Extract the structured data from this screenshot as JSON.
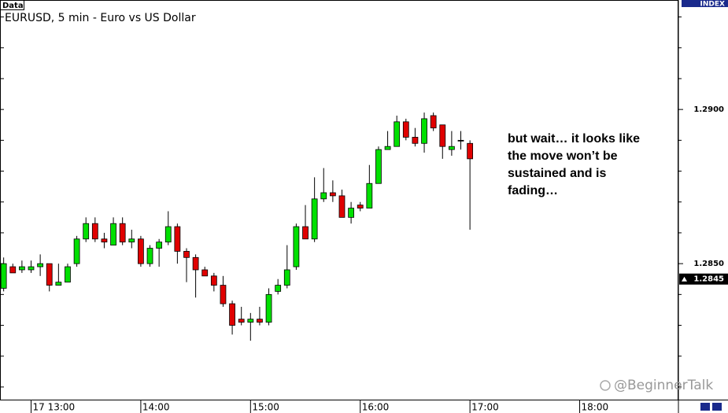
{
  "chart_data": {
    "type": "candlestick",
    "badge": "Data",
    "title": "EURUSD, 5 min - Euro vs US Dollar",
    "axis_title": "INDEX",
    "x": [
      765,
      770,
      775,
      780,
      785,
      790,
      795,
      800,
      805,
      810,
      815,
      820,
      825,
      830,
      835,
      840,
      845,
      850,
      855,
      860,
      865,
      870,
      875,
      880,
      885,
      890,
      895,
      900,
      905,
      910,
      915,
      920,
      925,
      930,
      935,
      940,
      945,
      950,
      955,
      960,
      965,
      970,
      975,
      980,
      985,
      990,
      995,
      1000,
      1005,
      1010,
      1015,
      1020
    ],
    "open": [
      1.2842,
      1.2849,
      1.2848,
      1.2848,
      1.2849,
      1.285,
      1.2843,
      1.2844,
      1.285,
      1.2858,
      1.2863,
      1.2858,
      1.2856,
      1.2863,
      1.2857,
      1.2858,
      1.285,
      1.2855,
      1.2857,
      1.2862,
      1.2854,
      1.2852,
      1.2848,
      1.2846,
      1.2843,
      1.2837,
      1.2832,
      1.2831,
      1.2832,
      1.2831,
      1.2841,
      1.2843,
      1.2849,
      1.2862,
      1.2858,
      1.2871,
      1.2873,
      1.2872,
      1.2865,
      1.2869,
      1.2868,
      1.2876,
      1.2887,
      1.2888,
      1.2896,
      1.2891,
      1.2889,
      1.2898,
      1.2895,
      1.2887,
      1.289,
      1.2889
    ],
    "high": [
      1.2852,
      1.285,
      1.2851,
      1.2851,
      1.2853,
      1.285,
      1.285,
      1.285,
      1.2859,
      1.2865,
      1.2865,
      1.286,
      1.2865,
      1.2865,
      1.2861,
      1.2859,
      1.2856,
      1.2858,
      1.2867,
      1.2863,
      1.2855,
      1.2853,
      1.2849,
      1.2847,
      1.2846,
      1.2838,
      1.2836,
      1.2834,
      1.2836,
      1.2842,
      1.2845,
      1.2856,
      1.2863,
      1.2869,
      1.2878,
      1.2881,
      1.2877,
      1.2874,
      1.287,
      1.287,
      1.2882,
      1.2888,
      1.2893,
      1.2898,
      1.2897,
      1.2894,
      1.2899,
      1.2899,
      1.2895,
      1.2893,
      1.2893,
      1.289
    ],
    "low": [
      1.2841,
      1.2847,
      1.2847,
      1.2847,
      1.2846,
      1.2841,
      1.2843,
      1.2844,
      1.2849,
      1.2857,
      1.2857,
      1.2855,
      1.2856,
      1.2856,
      1.2855,
      1.2849,
      1.2849,
      1.2849,
      1.2856,
      1.285,
      1.2844,
      1.2839,
      1.2846,
      1.2841,
      1.2836,
      1.2827,
      1.283,
      1.2825,
      1.283,
      1.283,
      1.284,
      1.2842,
      1.2848,
      1.2858,
      1.2857,
      1.287,
      1.287,
      1.2865,
      1.2863,
      1.2867,
      1.2868,
      1.2876,
      1.2887,
      1.2888,
      1.289,
      1.2888,
      1.2886,
      1.2893,
      1.2884,
      1.2885,
      1.2887,
      1.2861
    ],
    "close": [
      1.285,
      1.2847,
      1.2849,
      1.2849,
      1.285,
      1.2843,
      1.2844,
      1.2849,
      1.2858,
      1.2863,
      1.2858,
      1.2857,
      1.2863,
      1.2857,
      1.2858,
      1.285,
      1.2855,
      1.2857,
      1.2862,
      1.2854,
      1.2852,
      1.2848,
      1.2846,
      1.2843,
      1.2837,
      1.283,
      1.2831,
      1.2832,
      1.2831,
      1.284,
      1.2843,
      1.2848,
      1.2862,
      1.2858,
      1.2871,
      1.2873,
      1.2872,
      1.2865,
      1.2868,
      1.2868,
      1.2876,
      1.2887,
      1.2888,
      1.2896,
      1.2891,
      1.2889,
      1.2897,
      1.2894,
      1.2888,
      1.2888,
      1.289,
      1.2884
    ],
    "up_color": "#00e000",
    "down_color": "#e00000",
    "xlim": [
      763,
      1134
    ],
    "xticks": [
      {
        "value": 780,
        "label": "17 13:00"
      },
      {
        "value": 840,
        "label": "14:00"
      },
      {
        "value": 900,
        "label": "15:00"
      },
      {
        "value": 960,
        "label": "16:00"
      },
      {
        "value": 1020,
        "label": "17:00"
      },
      {
        "value": 1080,
        "label": "18:00"
      }
    ],
    "ylim": [
      1.28059,
      1.29355
    ],
    "yticks": [
      {
        "value": 1.29,
        "label": "1.2900"
      },
      {
        "value": 1.285,
        "label": "1.2850"
      }
    ],
    "y_minor_ticks": [
      1.293,
      1.292,
      1.291,
      1.289,
      1.288,
      1.287,
      1.286,
      1.284,
      1.283,
      1.282,
      1.281
    ],
    "grid": false,
    "last_price": {
      "value": 1.2845,
      "label": "1.2845"
    },
    "annotation": [
      "but wait… it looks like",
      "the move won’t be",
      "sustained and is",
      "fading…"
    ],
    "watermark": "@BeginnerTalk"
  }
}
